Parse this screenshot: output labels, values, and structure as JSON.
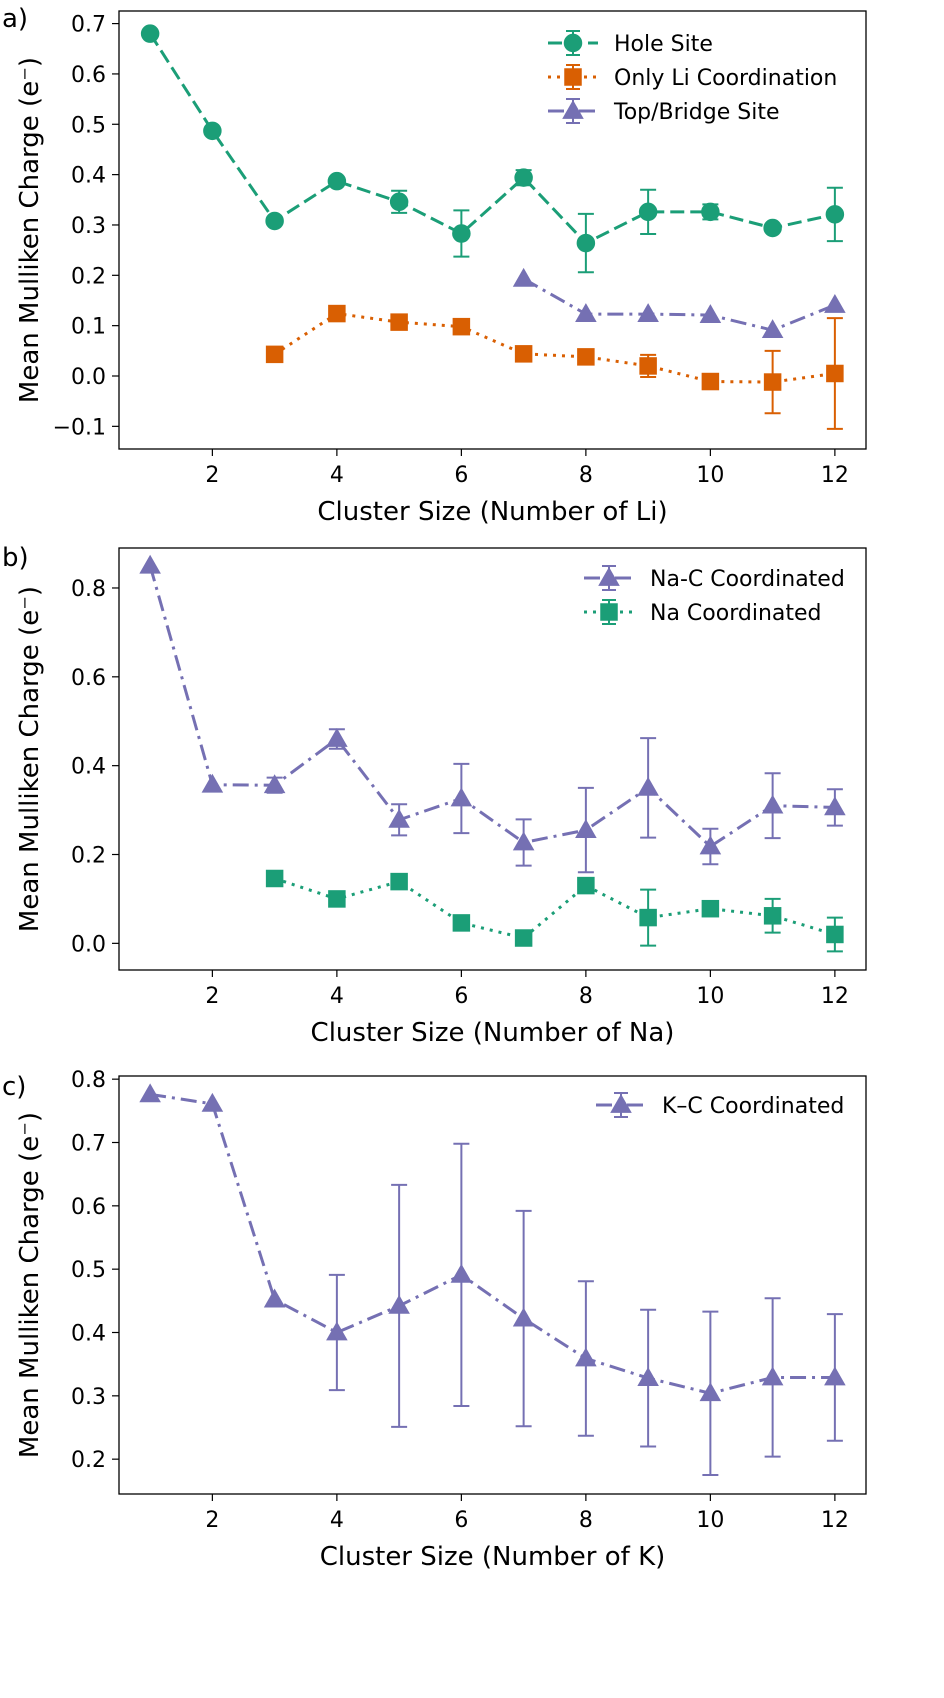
{
  "figure": {
    "panels": [
      {
        "panel_label": "a)",
        "xlabel": "Cluster Size (Number of Li)",
        "ylabel": "Mean Mulliken Charge (e⁻)",
        "legend_position": "top-right"
      },
      {
        "panel_label": "b)",
        "xlabel": "Cluster Size (Number of Na)",
        "ylabel": "Mean Mulliken Charge (e⁻)",
        "legend_position": "top-right"
      },
      {
        "panel_label": "c)",
        "xlabel": "Cluster Size (Number of K)",
        "ylabel": "Mean Mulliken Charge (e⁻)",
        "legend_position": "top-right"
      }
    ]
  },
  "chart_data": [
    {
      "type": "line",
      "panel_label": "a)",
      "xlabel": "Cluster Size (Number of Li)",
      "ylabel": "Mean Mulliken Charge (e⁻)",
      "xlim": [
        0.5,
        12.5
      ],
      "ylim": [
        -0.145,
        0.725
      ],
      "xticks": [
        2,
        4,
        6,
        8,
        10,
        12
      ],
      "yticks": [
        -0.1,
        0.0,
        0.1,
        0.2,
        0.3,
        0.4,
        0.5,
        0.6,
        0.7
      ],
      "ytick_labels": [
        "−0.1",
        "0.0",
        "0.1",
        "0.2",
        "0.3",
        "0.4",
        "0.5",
        "0.6",
        "0.7"
      ],
      "grid": false,
      "legend_position": "top-right",
      "series": [
        {
          "name": "Hole Site",
          "color": "#1b9e77",
          "marker": "circle",
          "linestyle": "dashed",
          "x": [
            1,
            2,
            3,
            4,
            5,
            6,
            7,
            8,
            9,
            10,
            11,
            12
          ],
          "y": [
            0.68,
            0.487,
            0.308,
            0.387,
            0.346,
            0.283,
            0.394,
            0.264,
            0.326,
            0.326,
            0.294,
            0.321
          ],
          "err": [
            0.0,
            0.0,
            0.0,
            0.0,
            0.022,
            0.046,
            0.015,
            0.058,
            0.044,
            0.015,
            0.0,
            0.053
          ]
        },
        {
          "name": "Only Li Coordination",
          "color": "#d95f02",
          "marker": "square",
          "linestyle": "dotted",
          "x": [
            3,
            4,
            5,
            6,
            7,
            8,
            9,
            10,
            11,
            12
          ],
          "y": [
            0.043,
            0.124,
            0.107,
            0.098,
            0.044,
            0.038,
            0.02,
            -0.011,
            -0.012,
            0.005
          ],
          "err": [
            0.0,
            0.0,
            0.0,
            0.0,
            0.0,
            0.0,
            0.022,
            0.0,
            0.062,
            0.11
          ]
        },
        {
          "name": "Top/Bridge Site",
          "color": "#7570b3",
          "marker": "triangle",
          "linestyle": "dashdot",
          "x": [
            7,
            8,
            9,
            10,
            11,
            12
          ],
          "y": [
            0.193,
            0.123,
            0.123,
            0.121,
            0.091,
            0.141
          ],
          "err": [
            0,
            0,
            0,
            0,
            0,
            0
          ]
        }
      ]
    },
    {
      "type": "line",
      "panel_label": "b)",
      "xlabel": "Cluster Size (Number of Na)",
      "ylabel": "Mean Mulliken Charge (e⁻)",
      "xlim": [
        0.5,
        12.5
      ],
      "ylim": [
        -0.06,
        0.89
      ],
      "xticks": [
        2,
        4,
        6,
        8,
        10,
        12
      ],
      "yticks": [
        0.0,
        0.2,
        0.4,
        0.6,
        0.8
      ],
      "ytick_labels": [
        "0.0",
        "0.2",
        "0.4",
        "0.6",
        "0.8"
      ],
      "grid": false,
      "legend_position": "top-right",
      "series": [
        {
          "name": "Na-C Coordinated",
          "color": "#7570b3",
          "marker": "triangle",
          "linestyle": "dashdot",
          "x": [
            1,
            2,
            3,
            4,
            5,
            6,
            7,
            8,
            9,
            10,
            11,
            12
          ],
          "y": [
            0.85,
            0.357,
            0.356,
            0.46,
            0.278,
            0.326,
            0.227,
            0.255,
            0.35,
            0.218,
            0.31,
            0.306
          ],
          "err": [
            0.0,
            0.0,
            0.017,
            0.022,
            0.035,
            0.078,
            0.052,
            0.095,
            0.112,
            0.04,
            0.073,
            0.041
          ]
        },
        {
          "name": "Na Coordinated",
          "color": "#1b9e77",
          "marker": "square",
          "linestyle": "dotted",
          "x": [
            3,
            4,
            5,
            6,
            7,
            8,
            9,
            10,
            11,
            12
          ],
          "y": [
            0.146,
            0.1,
            0.139,
            0.046,
            0.012,
            0.13,
            0.058,
            0.078,
            0.062,
            0.02
          ],
          "err": [
            0.0,
            0.0,
            0.0,
            0.0,
            0.0,
            0.0,
            0.063,
            0.0,
            0.038,
            0.038
          ]
        }
      ]
    },
    {
      "type": "line",
      "panel_label": "c)",
      "xlabel": "Cluster Size (Number of K)",
      "ylabel": "Mean Mulliken Charge (e⁻)",
      "xlim": [
        0.5,
        12.5
      ],
      "ylim": [
        0.145,
        0.805
      ],
      "xticks": [
        2,
        4,
        6,
        8,
        10,
        12
      ],
      "yticks": [
        0.2,
        0.3,
        0.4,
        0.5,
        0.6,
        0.7,
        0.8
      ],
      "ytick_labels": [
        "0.2",
        "0.3",
        "0.4",
        "0.5",
        "0.6",
        "0.7",
        "0.8"
      ],
      "grid": false,
      "legend_position": "top-right",
      "series": [
        {
          "name": "K–C Coordinated",
          "color": "#7570b3",
          "marker": "triangle",
          "linestyle": "dashdot",
          "x": [
            1,
            2,
            3,
            4,
            5,
            6,
            7,
            8,
            9,
            10,
            11,
            12
          ],
          "y": [
            0.776,
            0.761,
            0.452,
            0.4,
            0.442,
            0.491,
            0.422,
            0.359,
            0.328,
            0.304,
            0.329,
            0.329
          ],
          "err": [
            0.0,
            0.0,
            0.0,
            0.091,
            0.191,
            0.207,
            0.17,
            0.122,
            0.108,
            0.129,
            0.125,
            0.1
          ]
        }
      ]
    }
  ]
}
